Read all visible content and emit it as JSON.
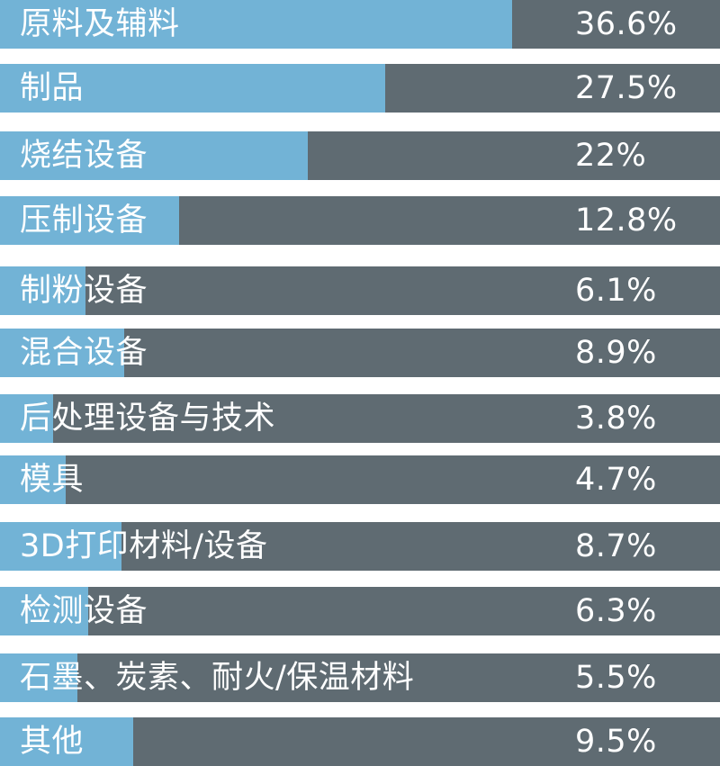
{
  "colors": {
    "bar_fill": "#72b3d6",
    "bar_track": "#5f6b72",
    "text": "#ffffff",
    "background": "#ffffff"
  },
  "chart_data": {
    "type": "bar",
    "orientation": "horizontal",
    "categories": [
      "原料及辅料",
      "制品",
      "烧结设备",
      "压制设备",
      "制粉设备",
      "混合设备",
      "后处理设备与技术",
      "模具",
      "3D打印材料/设备",
      "检测设备",
      "石墨、炭素、耐火/保温材料",
      "其他"
    ],
    "values": [
      36.6,
      27.5,
      22,
      12.8,
      6.1,
      8.9,
      3.8,
      4.7,
      8.7,
      6.3,
      5.5,
      9.5
    ],
    "value_labels": [
      "36.6%",
      "27.5%",
      "22%",
      "12.8%",
      "6.1%",
      "8.9%",
      "3.8%",
      "4.7%",
      "8.7%",
      "6.3%",
      "5.5%",
      "9.5%"
    ],
    "title": "",
    "xlabel": "",
    "ylabel": "",
    "unit": "%",
    "grid": false,
    "legend": "none"
  }
}
